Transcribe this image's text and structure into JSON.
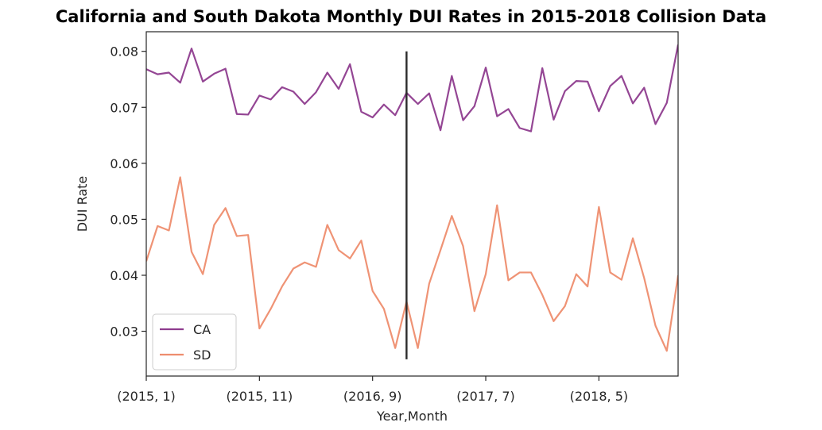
{
  "chart_data": {
    "type": "line",
    "title": "California and South Dakota Monthly DUI Rates in 2015-2018 Collision Data",
    "xlabel": "Year,Month",
    "ylabel": "DUI Rate",
    "ylim": [
      0.022,
      0.0835
    ],
    "yticks": [
      0.03,
      0.04,
      0.05,
      0.06,
      0.07,
      0.08
    ],
    "ytick_labels": [
      "0.03",
      "0.04",
      "0.05",
      "0.06",
      "0.07",
      "0.08"
    ],
    "xtick_labels": [
      "(2015, 1)",
      "(2015, 11)",
      "(2016, 9)",
      "(2017, 7)",
      "(2018, 5)"
    ],
    "xtick_index": [
      0,
      10,
      20,
      30,
      40
    ],
    "vline": {
      "index": 23,
      "y_range": [
        0.025,
        0.08
      ],
      "color": "#2b2b2b"
    },
    "grid": false,
    "legend": "bottom-left",
    "categories": [
      "(2015, 1)",
      "(2015, 2)",
      "(2015, 3)",
      "(2015, 4)",
      "(2015, 5)",
      "(2015, 6)",
      "(2015, 7)",
      "(2015, 8)",
      "(2015, 9)",
      "(2015, 10)",
      "(2015, 11)",
      "(2015, 12)",
      "(2016, 1)",
      "(2016, 2)",
      "(2016, 3)",
      "(2016, 4)",
      "(2016, 5)",
      "(2016, 6)",
      "(2016, 7)",
      "(2016, 8)",
      "(2016, 9)",
      "(2016, 10)",
      "(2016, 11)",
      "(2016, 12)",
      "(2017, 1)",
      "(2017, 2)",
      "(2017, 3)",
      "(2017, 4)",
      "(2017, 5)",
      "(2017, 6)",
      "(2017, 7)",
      "(2017, 8)",
      "(2017, 9)",
      "(2017, 10)",
      "(2017, 11)",
      "(2017, 12)",
      "(2018, 1)",
      "(2018, 2)",
      "(2018, 3)",
      "(2018, 4)",
      "(2018, 5)",
      "(2018, 6)",
      "(2018, 7)",
      "(2018, 8)",
      "(2018, 9)",
      "(2018, 10)",
      "(2018, 11)",
      "(2018, 12)"
    ],
    "series": [
      {
        "name": "CA",
        "color": "#8e3c8e",
        "values": [
          0.0768,
          0.0759,
          0.0762,
          0.0744,
          0.0805,
          0.0746,
          0.076,
          0.0769,
          0.0688,
          0.0687,
          0.0721,
          0.0714,
          0.0736,
          0.0728,
          0.0706,
          0.0727,
          0.0762,
          0.0733,
          0.0777,
          0.0692,
          0.0682,
          0.0705,
          0.0686,
          0.0726,
          0.0706,
          0.0725,
          0.0659,
          0.0756,
          0.0677,
          0.0702,
          0.0771,
          0.0684,
          0.0697,
          0.0663,
          0.0657,
          0.077,
          0.0678,
          0.0729,
          0.0747,
          0.0746,
          0.0693,
          0.0738,
          0.0756,
          0.0707,
          0.0735,
          0.067,
          0.0708,
          0.0812
        ]
      },
      {
        "name": "SD",
        "color": "#ee8d6e",
        "values": [
          0.0425,
          0.0488,
          0.048,
          0.0575,
          0.0442,
          0.0402,
          0.049,
          0.052,
          0.047,
          0.0472,
          0.0305,
          0.034,
          0.038,
          0.0412,
          0.0423,
          0.0415,
          0.049,
          0.0445,
          0.043,
          0.0462,
          0.0372,
          0.034,
          0.027,
          0.0353,
          0.027,
          0.0385,
          0.0445,
          0.0506,
          0.0452,
          0.0336,
          0.0402,
          0.0525,
          0.0391,
          0.0405,
          0.0405,
          0.0365,
          0.0318,
          0.0345,
          0.0402,
          0.038,
          0.0522,
          0.0405,
          0.0392,
          0.0466,
          0.0395,
          0.031,
          0.0265,
          0.04
        ]
      }
    ]
  }
}
